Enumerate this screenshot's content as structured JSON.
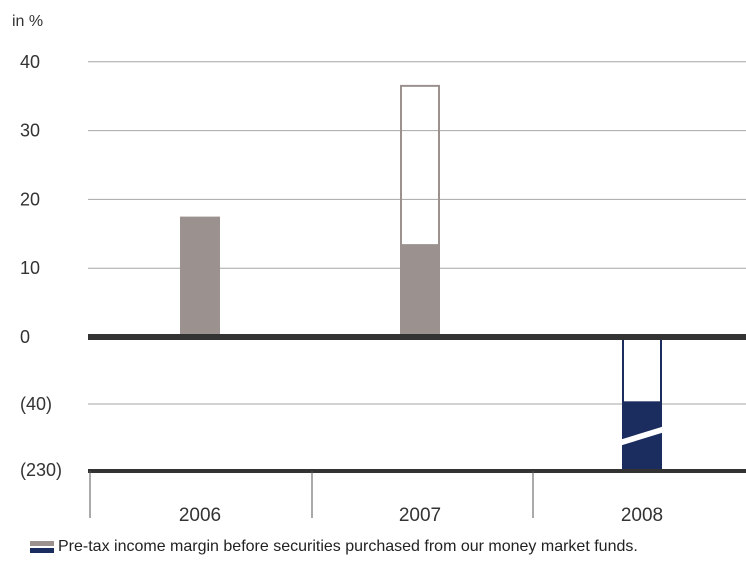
{
  "chart_data": {
    "type": "bar",
    "unit_label": "in %",
    "categories": [
      "2006",
      "2007",
      "2008"
    ],
    "y_ticks": [
      {
        "value": 40,
        "label": "40"
      },
      {
        "value": 30,
        "label": "30"
      },
      {
        "value": 20,
        "label": "20"
      },
      {
        "value": 10,
        "label": "10"
      },
      {
        "value": 0,
        "label": "0"
      },
      {
        "value": -40,
        "label": "(40)"
      },
      {
        "value": -230,
        "label": "(230)"
      }
    ],
    "series": [
      {
        "name": "Pre-tax income margin",
        "values": [
          17.5,
          13.5,
          -230
        ],
        "style": "solid"
      },
      {
        "name": "Pre-tax income margin before securities purchased from our money market funds",
        "values": [
          null,
          36.5,
          -39
        ],
        "style": "outline"
      }
    ],
    "grid": true,
    "axis_break": {
      "category": "2008"
    },
    "legend_text": "Pre-tax income margin before securities purchased from our money market funds.",
    "colors": {
      "bar_2006_2007": "#9b9290",
      "bar_2008": "#1b2c5e",
      "outline_2007": "#9b9290",
      "outline_2008": "#1b2c5e",
      "axis": "#333333",
      "grid": "#a6a6a6"
    }
  }
}
